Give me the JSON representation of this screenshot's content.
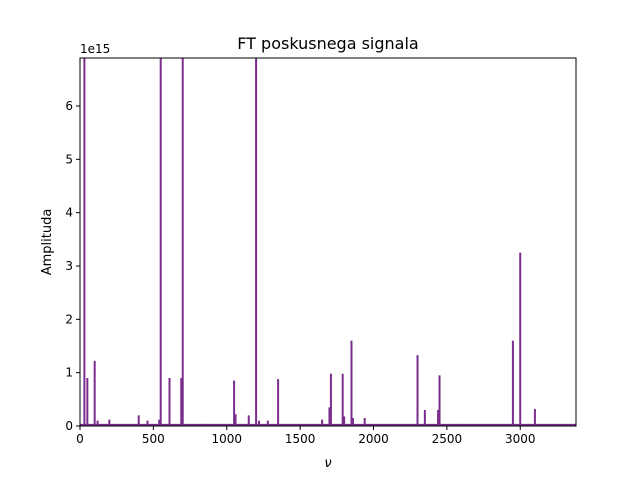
{
  "chart_data": {
    "type": "line",
    "title": "FT poskusnega signala",
    "xlabel": "ν",
    "ylabel": "Amplituda",
    "y_offset_label": "1e15",
    "xlim": [
      0,
      3380
    ],
    "ylim": [
      0,
      6.9
    ],
    "y_unit_multiplier": 1000000000000000.0,
    "x_ticks": [
      0,
      500,
      1000,
      1500,
      2000,
      2500,
      3000
    ],
    "y_ticks": [
      0,
      1,
      2,
      3,
      4,
      5,
      6
    ],
    "x_tick_labels": [
      "0",
      "500",
      "1000",
      "1500",
      "2000",
      "2500",
      "3000"
    ],
    "y_tick_labels": [
      "0",
      "1",
      "2",
      "3",
      "4",
      "5",
      "6"
    ],
    "grid": false,
    "line_color": "#7b2d8e",
    "baseline": 0.02,
    "series": [
      {
        "peaks": [
          {
            "x": 30,
            "y": 6.9
          },
          {
            "x": 50,
            "y": 0.9
          },
          {
            "x": 100,
            "y": 1.22
          },
          {
            "x": 120,
            "y": 0.1
          },
          {
            "x": 200,
            "y": 0.12
          },
          {
            "x": 400,
            "y": 0.2
          },
          {
            "x": 460,
            "y": 0.1
          },
          {
            "x": 540,
            "y": 0.12
          },
          {
            "x": 550,
            "y": 6.9
          },
          {
            "x": 610,
            "y": 0.9
          },
          {
            "x": 690,
            "y": 0.9
          },
          {
            "x": 700,
            "y": 6.9
          },
          {
            "x": 850,
            "y": 0.04
          },
          {
            "x": 1050,
            "y": 0.85
          },
          {
            "x": 1060,
            "y": 0.22
          },
          {
            "x": 1150,
            "y": 0.2
          },
          {
            "x": 1200,
            "y": 6.9
          },
          {
            "x": 1220,
            "y": 0.1
          },
          {
            "x": 1280,
            "y": 0.1
          },
          {
            "x": 1350,
            "y": 0.88
          },
          {
            "x": 1650,
            "y": 0.12
          },
          {
            "x": 1700,
            "y": 0.35
          },
          {
            "x": 1710,
            "y": 0.98
          },
          {
            "x": 1790,
            "y": 0.98
          },
          {
            "x": 1800,
            "y": 0.18
          },
          {
            "x": 1850,
            "y": 1.6
          },
          {
            "x": 1860,
            "y": 0.15
          },
          {
            "x": 1940,
            "y": 0.15
          },
          {
            "x": 2300,
            "y": 1.33
          },
          {
            "x": 2350,
            "y": 0.3
          },
          {
            "x": 2440,
            "y": 0.3
          },
          {
            "x": 2450,
            "y": 0.95
          },
          {
            "x": 2600,
            "y": 0.04
          },
          {
            "x": 2950,
            "y": 1.6
          },
          {
            "x": 3000,
            "y": 3.25
          },
          {
            "x": 3100,
            "y": 0.32
          },
          {
            "x": 3200,
            "y": 0.03
          },
          {
            "x": 3300,
            "y": 0.03
          }
        ]
      }
    ]
  }
}
